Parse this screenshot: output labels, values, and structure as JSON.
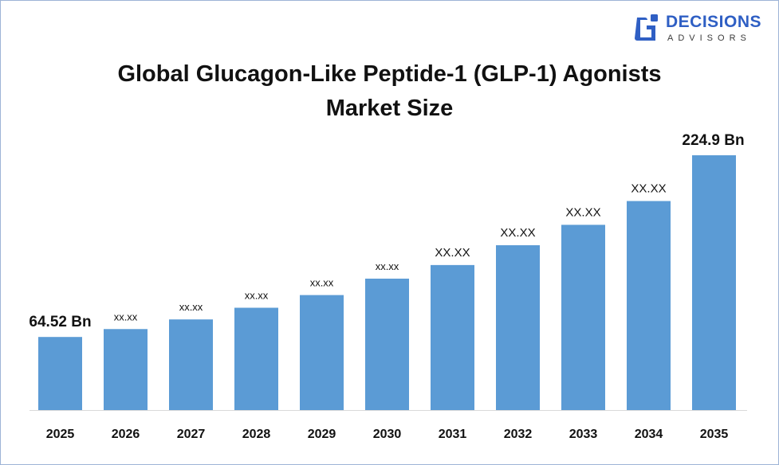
{
  "brand": {
    "name": "DECISIONS",
    "sub": "ADVISORS",
    "icon": "decisions-advisors-logo-icon",
    "color": "#2f5fc4"
  },
  "chart_data": {
    "type": "bar",
    "title_line1": "Global Glucagon-Like Peptide-1 (GLP-1) Agonists",
    "title_line2": "Market Size",
    "categories": [
      "2025",
      "2026",
      "2027",
      "2028",
      "2029",
      "2030",
      "2031",
      "2032",
      "2033",
      "2034",
      "2035"
    ],
    "values": [
      64.52,
      71.5,
      80.0,
      90.3,
      101.5,
      116.0,
      128.0,
      145.5,
      163.5,
      184.5,
      224.9
    ],
    "labels": [
      "64.52 Bn",
      "xx.xx",
      "xx.xx",
      "xx.xx",
      "xx.xx",
      "xx.xx",
      "XX.XX",
      "XX.XX",
      "XX.XX",
      "XX.XX",
      "224.9 Bn"
    ],
    "bar_color": "#5b9bd5",
    "ylim": [
      0,
      240
    ],
    "grid": false,
    "legend": "none"
  }
}
